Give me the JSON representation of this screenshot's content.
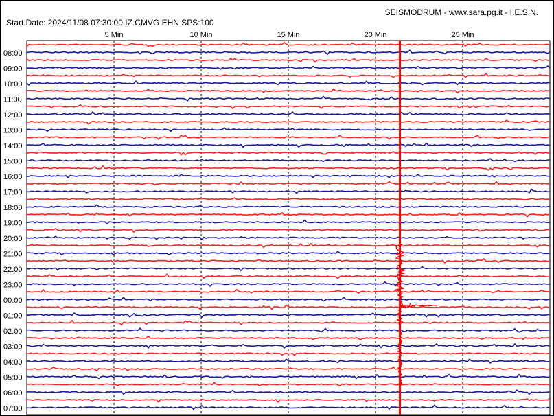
{
  "header": {
    "source": "SEISMODRUM - www.sara.pg.it - I.E.S.N.",
    "start_info": "Start Date: 2024/11/08 07:30:00 IZ CMVG EHN SPS:100"
  },
  "colors": {
    "odd_trace": "#ff2020",
    "even_trace": "#1a1aa0",
    "grid": "#000000",
    "event": "#ff0000"
  },
  "chart_data": {
    "type": "line",
    "x_ticks": [
      "5 Min",
      "10 Min",
      "15 Min",
      "20 Min",
      "25 Min"
    ],
    "x_tick_values": [
      5,
      10,
      15,
      20,
      25
    ],
    "xlim": [
      0,
      30
    ],
    "row_labels": [
      "08:00",
      "09:00",
      "10:00",
      "11:00",
      "12:00",
      "13:00",
      "14:00",
      "15:00",
      "16:00",
      "17:00",
      "18:00",
      "19:00",
      "20:00",
      "21:00",
      "22:00",
      "23:00",
      "00:00",
      "01:00",
      "02:00",
      "03:00",
      "04:00",
      "05:00",
      "06:00",
      "07:00"
    ],
    "grid": "dashed vertical every 5 minutes",
    "event": {
      "minute": 21.4,
      "description": "large seismic event spanning trace rows"
    }
  }
}
